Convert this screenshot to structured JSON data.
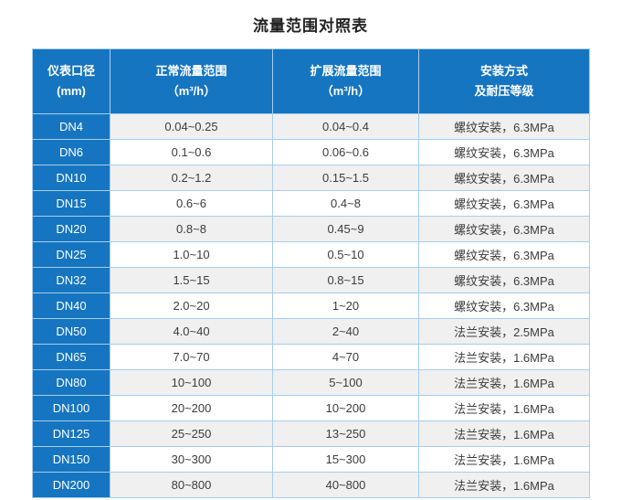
{
  "title": "流量范围对照表",
  "colors": {
    "header_bg": "#1575c0",
    "row_alt_bg": "#f0f0f0",
    "border": "#a6cdec",
    "header_text": "#ffffff",
    "body_text": "#3c3c3c"
  },
  "chart_data": {
    "type": "table",
    "title": "流量范围对照表",
    "columns": [
      {
        "line1": "仪表口径",
        "line2": "(mm)"
      },
      {
        "line1": "正常流量范围",
        "line2": "（m³/h）"
      },
      {
        "line1": "扩展流量范围",
        "line2": "（m³/h）"
      },
      {
        "line1": "安装方式",
        "line2": "及耐压等级"
      }
    ],
    "rows": [
      [
        "DN4",
        "0.04~0.25",
        "0.04~0.4",
        "螺纹安装，6.3MPa"
      ],
      [
        "DN6",
        "0.1~0.6",
        "0.06~0.6",
        "螺纹安装，6.3MPa"
      ],
      [
        "DN10",
        "0.2~1.2",
        "0.15~1.5",
        "螺纹安装，6.3MPa"
      ],
      [
        "DN15",
        "0.6~6",
        "0.4~8",
        "螺纹安装，6.3MPa"
      ],
      [
        "DN20",
        "0.8~8",
        "0.45~9",
        "螺纹安装，6.3MPa"
      ],
      [
        "DN25",
        "1.0~10",
        "0.5~10",
        "螺纹安装，6.3MPa"
      ],
      [
        "DN32",
        "1.5~15",
        "0.8~15",
        "螺纹安装，6.3MPa"
      ],
      [
        "DN40",
        "2.0~20",
        "1~20",
        "螺纹安装，6.3MPa"
      ],
      [
        "DN50",
        "4.0~40",
        "2~40",
        "法兰安装，2.5MPa"
      ],
      [
        "DN65",
        "7.0~70",
        "4~70",
        "法兰安装，1.6MPa"
      ],
      [
        "DN80",
        "10~100",
        "5~100",
        "法兰安装，1.6MPa"
      ],
      [
        "DN100",
        "20~200",
        "10~200",
        "法兰安装，1.6MPa"
      ],
      [
        "DN125",
        "25~250",
        "13~250",
        "法兰安装，1.6MPa"
      ],
      [
        "DN150",
        "30~300",
        "15~300",
        "法兰安装，1.6MPa"
      ],
      [
        "DN200",
        "80~800",
        "40~800",
        "法兰安装，1.6MPa"
      ]
    ]
  }
}
